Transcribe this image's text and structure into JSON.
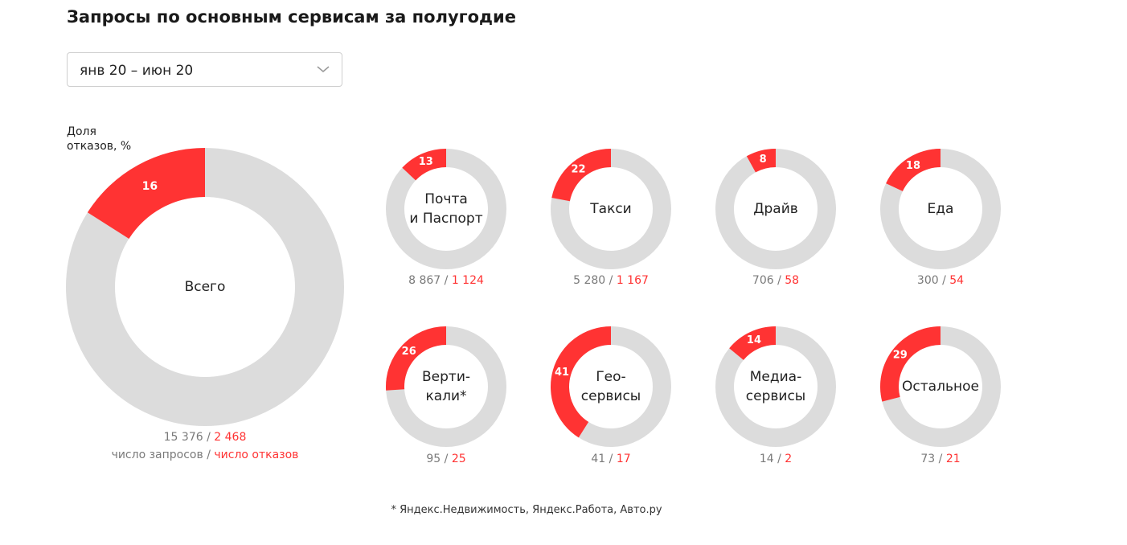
{
  "header": {
    "title": "Запросы по основным сервисам за полугодие"
  },
  "period_select": {
    "value": "янв 20 – июн 20",
    "icon": "chevron-down-icon"
  },
  "share_axis_label": {
    "line1": "Доля",
    "line2": "отказов, %"
  },
  "legend": {
    "requests_label": "число запросов",
    "separator": " / ",
    "refusals_label": "число отказов"
  },
  "footnote": "* Яндекс.Недвижимость, Яндекс.Работа, Авто.ру",
  "colors": {
    "refusal": "#ff3333",
    "track": "#dcdcdc",
    "count_text": "#7a7a7a"
  },
  "chart_data": {
    "type": "donut",
    "value_label": "Доля отказов, %",
    "items": [
      {
        "id": "total",
        "label_lines": [
          "Всего"
        ],
        "share": 16,
        "requests": "15 376",
        "refusals": "2 468"
      },
      {
        "id": "mail",
        "label_lines": [
          "Почта",
          "и Паспорт"
        ],
        "share": 13,
        "requests": "8 867",
        "refusals": "1 124"
      },
      {
        "id": "taxi",
        "label_lines": [
          "Такси"
        ],
        "share": 22,
        "requests": "5 280",
        "refusals": "1 167"
      },
      {
        "id": "drive",
        "label_lines": [
          "Драйв"
        ],
        "share": 8,
        "requests": "706",
        "refusals": "58"
      },
      {
        "id": "food",
        "label_lines": [
          "Еда"
        ],
        "share": 18,
        "requests": "300",
        "refusals": "54"
      },
      {
        "id": "verticals",
        "label_lines": [
          "Верти-",
          "кали*"
        ],
        "share": 26,
        "requests": "95",
        "refusals": "25"
      },
      {
        "id": "geo",
        "label_lines": [
          "Гео-",
          "сервисы"
        ],
        "share": 41,
        "requests": "41",
        "refusals": "17"
      },
      {
        "id": "media",
        "label_lines": [
          "Медиа-",
          "сервисы"
        ],
        "share": 14,
        "requests": "14",
        "refusals": "2"
      },
      {
        "id": "other",
        "label_lines": [
          "Остальное"
        ],
        "share": 29,
        "requests": "73",
        "refusals": "21"
      }
    ]
  }
}
